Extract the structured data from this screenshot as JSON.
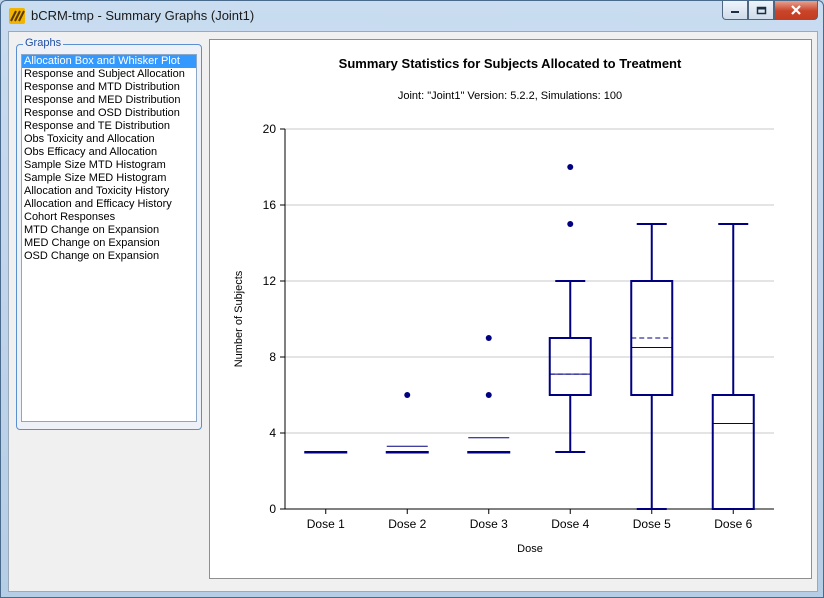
{
  "window": {
    "title": "bCRM-tmp - Summary Graphs (Joint1)"
  },
  "sidebar": {
    "group_label": "Graphs",
    "items": [
      {
        "label": "Allocation Box and Whisker Plot",
        "selected": true
      },
      {
        "label": "Response and Subject Allocation"
      },
      {
        "label": "Response and MTD Distribution"
      },
      {
        "label": "Response and MED Distribution"
      },
      {
        "label": "Response and OSD Distribution"
      },
      {
        "label": "Response and TE Distribution"
      },
      {
        "label": "Obs Toxicity and Allocation"
      },
      {
        "label": "Obs Efficacy and Allocation"
      },
      {
        "label": "Sample Size MTD Histogram"
      },
      {
        "label": "Sample Size MED Histogram"
      },
      {
        "label": "Allocation and Toxicity History"
      },
      {
        "label": "Allocation and Efficacy History"
      },
      {
        "label": "Cohort Responses"
      },
      {
        "label": "MTD Change on Expansion"
      },
      {
        "label": "MED Change on Expansion"
      },
      {
        "label": "OSD Change on Expansion"
      }
    ]
  },
  "chart_data": {
    "type": "box",
    "title": "Summary Statistics for Subjects Allocated to Treatment",
    "subtitle": "Joint: \"Joint1\" Version: 5.2.2, Simulations: 100",
    "xlabel": "Dose",
    "ylabel": "Number of Subjects",
    "ylim": [
      0,
      20
    ],
    "yticks": [
      0,
      4,
      8,
      12,
      16,
      20
    ],
    "grid": true,
    "color": "#000080",
    "categories": [
      "Dose 1",
      "Dose 2",
      "Dose 3",
      "Dose 4",
      "Dose 5",
      "Dose 6"
    ],
    "boxes": [
      {
        "min": 3,
        "q1": 3,
        "median": 3,
        "q3": 3,
        "max": 3,
        "mean": 3,
        "outliers": []
      },
      {
        "min": 3,
        "q1": 3,
        "median": 3,
        "q3": 3,
        "max": 3,
        "mean": 3.3,
        "outliers": [
          6
        ]
      },
      {
        "min": 3,
        "q1": 3,
        "median": 3,
        "q3": 3,
        "max": 3,
        "mean": 3.75,
        "outliers": [
          6,
          9
        ]
      },
      {
        "min": 3,
        "q1": 6,
        "median": 7.1,
        "q3": 9,
        "max": 12,
        "mean": 7.1,
        "outliers": [
          15,
          18
        ]
      },
      {
        "min": 0,
        "q1": 6,
        "median": 8.5,
        "q3": 12,
        "max": 15,
        "mean": 9.0,
        "outliers": []
      },
      {
        "min": 0,
        "q1": 0,
        "median": 4.5,
        "q3": 6,
        "max": 15,
        "mean": 4.5,
        "outliers": []
      }
    ]
  }
}
